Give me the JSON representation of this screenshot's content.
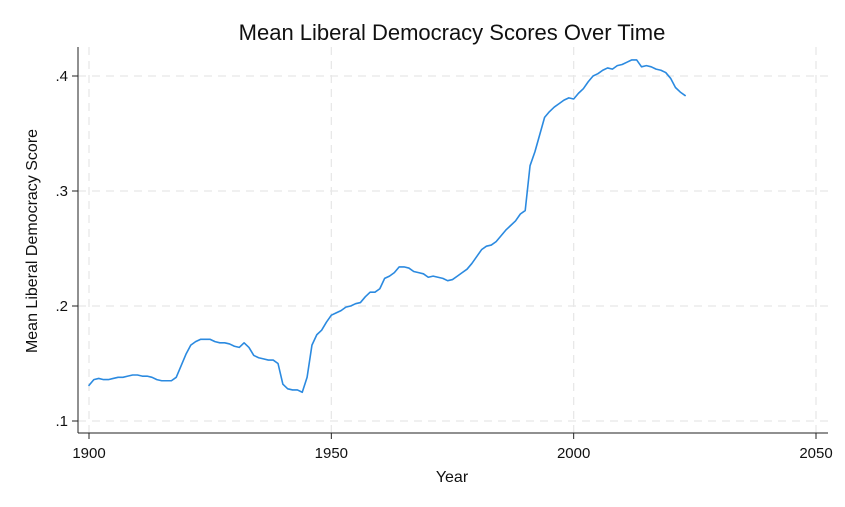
{
  "chart_data": {
    "type": "line",
    "title": "Mean Liberal Democracy Scores Over Time",
    "xlabel": "Year",
    "ylabel": "Mean Liberal Democracy Score",
    "xlim": [
      1900,
      2050
    ],
    "ylim": [
      0.1,
      0.4
    ],
    "x_ticks": [
      1900,
      1950,
      2000,
      2050
    ],
    "x_tick_labels": [
      "1900",
      "1950",
      "2000",
      "2050"
    ],
    "y_ticks": [
      0.1,
      0.2,
      0.3,
      0.4
    ],
    "y_tick_labels": [
      ".1",
      ".2",
      ".3",
      ".4"
    ],
    "grid": true,
    "line_color": "#2b8ae0",
    "series": [
      {
        "x": [
          1900,
          1901,
          1902,
          1903,
          1904,
          1905,
          1906,
          1907,
          1908,
          1909,
          1910,
          1911,
          1912,
          1913,
          1914,
          1915,
          1916,
          1917,
          1918,
          1919,
          1920,
          1921,
          1922,
          1923,
          1924,
          1925,
          1926,
          1927,
          1928,
          1929,
          1930,
          1931,
          1932,
          1933,
          1934,
          1935,
          1936,
          1937,
          1938,
          1939,
          1940,
          1941,
          1942,
          1943,
          1944,
          1945,
          1946,
          1947,
          1948,
          1949,
          1950,
          1951,
          1952,
          1953,
          1954,
          1955,
          1956,
          1957,
          1958,
          1959,
          1960,
          1961,
          1962,
          1963,
          1964,
          1965,
          1966,
          1967,
          1968,
          1969,
          1970,
          1971,
          1972,
          1973,
          1974,
          1975,
          1976,
          1977,
          1978,
          1979,
          1980,
          1981,
          1982,
          1983,
          1984,
          1985,
          1986,
          1987,
          1988,
          1989,
          1990,
          1991,
          1992,
          1993,
          1994,
          1995,
          1996,
          1997,
          1998,
          1999,
          2000,
          2001,
          2002,
          2003,
          2004,
          2005,
          2006,
          2007,
          2008,
          2009,
          2010,
          2011,
          2012,
          2013,
          2014,
          2015,
          2016,
          2017,
          2018,
          2019,
          2020,
          2021,
          2022,
          2023
        ],
        "y": [
          0.131,
          0.136,
          0.137,
          0.136,
          0.136,
          0.137,
          0.138,
          0.138,
          0.139,
          0.14,
          0.14,
          0.139,
          0.139,
          0.138,
          0.136,
          0.135,
          0.135,
          0.135,
          0.138,
          0.148,
          0.158,
          0.166,
          0.169,
          0.171,
          0.171,
          0.171,
          0.169,
          0.168,
          0.168,
          0.167,
          0.165,
          0.164,
          0.168,
          0.164,
          0.157,
          0.155,
          0.154,
          0.153,
          0.153,
          0.15,
          0.132,
          0.128,
          0.127,
          0.127,
          0.125,
          0.138,
          0.166,
          0.175,
          0.179,
          0.186,
          0.192,
          0.194,
          0.196,
          0.199,
          0.2,
          0.202,
          0.203,
          0.208,
          0.212,
          0.212,
          0.215,
          0.224,
          0.226,
          0.229,
          0.234,
          0.234,
          0.233,
          0.23,
          0.229,
          0.228,
          0.225,
          0.226,
          0.225,
          0.224,
          0.222,
          0.223,
          0.226,
          0.229,
          0.232,
          0.237,
          0.243,
          0.249,
          0.252,
          0.253,
          0.256,
          0.261,
          0.266,
          0.27,
          0.274,
          0.28,
          0.283,
          0.322,
          0.334,
          0.349,
          0.364,
          0.369,
          0.373,
          0.376,
          0.379,
          0.381,
          0.38,
          0.385,
          0.389,
          0.395,
          0.4,
          0.402,
          0.405,
          0.407,
          0.406,
          0.409,
          0.41,
          0.412,
          0.414,
          0.414,
          0.408,
          0.409,
          0.408,
          0.406,
          0.405,
          0.403,
          0.398,
          0.39,
          0.386,
          0.383
        ]
      }
    ]
  }
}
